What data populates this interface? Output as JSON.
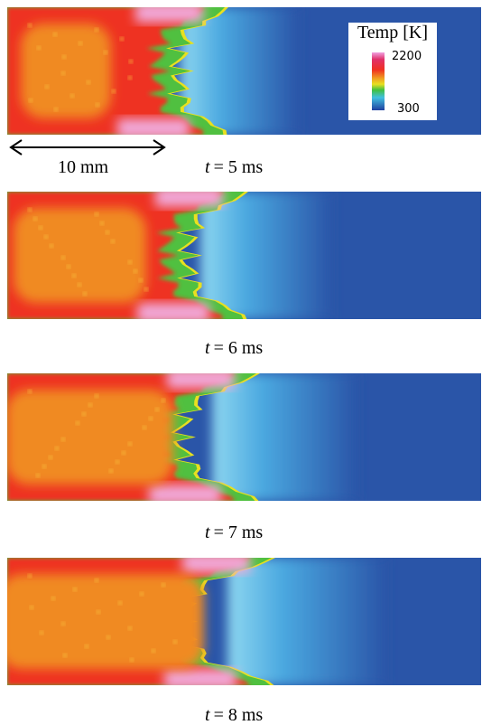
{
  "colorbar": {
    "title": "Temp [K]",
    "max": 2200,
    "min": 300
  },
  "scale_bar": "10 mm",
  "captions": [
    {
      "var": "t",
      "rest": "= 5 ms"
    },
    {
      "var": "t",
      "rest": "= 6 ms"
    },
    {
      "var": "t",
      "rest": "= 7 ms"
    },
    {
      "var": "t",
      "rest": "= 8 ms"
    }
  ]
}
